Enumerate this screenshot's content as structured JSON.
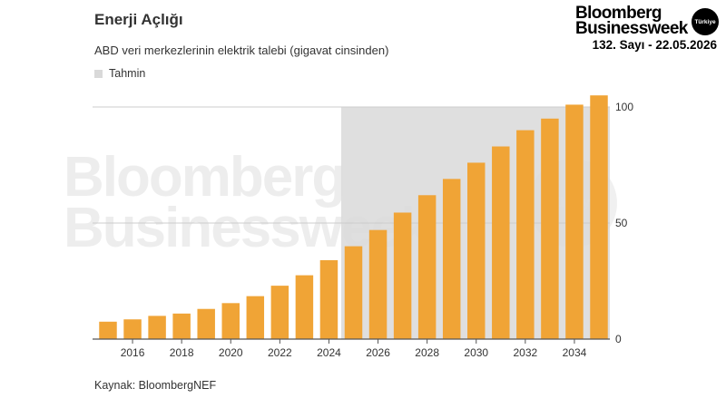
{
  "brand": {
    "line1": "Bloomberg",
    "line2": "Businessweek",
    "badge": "Türkiye",
    "issue": "132. Sayı - 22.05.2026"
  },
  "watermark": {
    "line1": "Bloomberg",
    "line2": "Businessweek",
    "badge": "Türkiye"
  },
  "colors": {
    "bar": "#f0a436",
    "forecast_band": "#d9d9d9",
    "grid": "#cccccc",
    "axis": "#555555"
  },
  "chart_data": {
    "type": "bar",
    "title": "Enerji Açlığı",
    "subtitle": "ABD veri merkezlerinin elektrik talebi (gigavat cinsinden)",
    "legend": [
      {
        "label": "Tahmin",
        "color": "#d9d9d9"
      }
    ],
    "legend_position": "top-left",
    "source": "Kaynak: BloombergNEF",
    "x": [
      2015,
      2016,
      2017,
      2018,
      2019,
      2020,
      2021,
      2022,
      2023,
      2024,
      2025,
      2026,
      2027,
      2028,
      2029,
      2030,
      2031,
      2032,
      2033,
      2034,
      2035
    ],
    "values": [
      7.5,
      8.5,
      10,
      11,
      13,
      15.5,
      18.5,
      23,
      27.5,
      34,
      40,
      47,
      54.5,
      62,
      69,
      76,
      83,
      90,
      95,
      101,
      105
    ],
    "x_tick_labels": [
      "2016",
      "2018",
      "2020",
      "2022",
      "2024",
      "2026",
      "2028",
      "2030",
      "2032",
      "2034"
    ],
    "y_ticks": [
      0,
      50,
      100
    ],
    "ylim": [
      0,
      100
    ],
    "y_axis_side": "right",
    "grid": true,
    "forecast_range": [
      2025,
      2035
    ]
  }
}
